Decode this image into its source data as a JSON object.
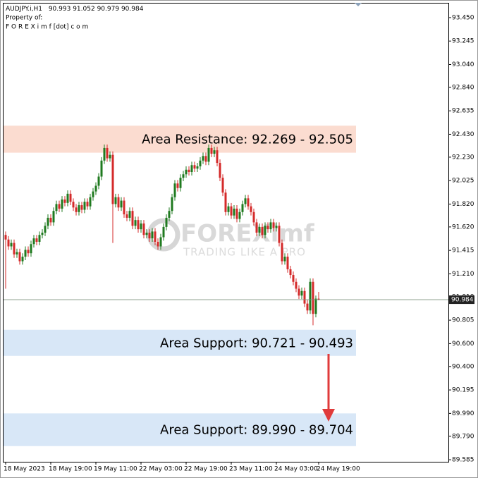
{
  "chart_data": {
    "type": "candlestick",
    "symbol": "AUDJPY.i,H1",
    "subtitle_lines": [
      "Property of:",
      "F O R E X i m f [dot] c o m"
    ],
    "watermark": {
      "brand": "FOREXimf",
      "tagline": "TRADING LIKE A PRO"
    },
    "up_color": "#1f7a1f",
    "down_color": "#d42a2a",
    "categories": [
      "18 May 2023",
      null,
      null,
      null,
      null,
      null,
      null,
      null,
      null,
      null,
      null,
      null,
      null,
      null,
      null,
      null,
      "18 May 19:00",
      null,
      null,
      null,
      null,
      null,
      null,
      null,
      null,
      null,
      null,
      null,
      null,
      null,
      null,
      null,
      "19 May 11:00",
      null,
      null,
      null,
      null,
      null,
      null,
      null,
      null,
      null,
      null,
      null,
      null,
      null,
      null,
      null,
      "22 May 03:00",
      null,
      null,
      null,
      null,
      null,
      null,
      null,
      null,
      null,
      null,
      null,
      null,
      null,
      null,
      null,
      "22 May 19:00",
      null,
      null,
      null,
      null,
      null,
      null,
      null,
      null,
      null,
      null,
      null,
      null,
      null,
      null,
      null,
      "23 May 11:00",
      null,
      null,
      null,
      null,
      null,
      null,
      null,
      null,
      null,
      null,
      null,
      null,
      null,
      null,
      null,
      "24 May 03:00",
      null,
      null,
      null,
      null,
      null,
      null,
      null,
      null,
      null,
      null,
      null,
      null,
      null,
      null,
      "24 May 19:00"
    ],
    "open": [
      91.55,
      91.51,
      91.45,
      91.48,
      91.38,
      91.4,
      91.32,
      91.36,
      91.42,
      91.39,
      91.47,
      91.52,
      91.49,
      91.55,
      91.57,
      91.63,
      91.7,
      91.66,
      91.76,
      91.82,
      91.78,
      91.86,
      91.83,
      91.91,
      91.84,
      91.79,
      91.75,
      91.81,
      91.77,
      91.84,
      91.8,
      91.88,
      91.93,
      91.98,
      92.06,
      92.2,
      92.31,
      92.22,
      92.25,
      91.82,
      91.88,
      91.79,
      91.85,
      91.73,
      91.7,
      91.76,
      91.63,
      91.68,
      91.6,
      91.65,
      91.55,
      91.57,
      91.52,
      91.58,
      91.49,
      91.45,
      91.53,
      91.62,
      91.7,
      91.76,
      91.88,
      92.0,
      91.96,
      92.05,
      92.08,
      92.12,
      92.1,
      92.16,
      92.13,
      92.15,
      92.2,
      92.24,
      92.19,
      92.31,
      92.26,
      92.29,
      92.18,
      92.05,
      91.92,
      91.75,
      91.8,
      91.72,
      91.78,
      91.69,
      91.75,
      91.82,
      91.87,
      91.8,
      91.75,
      91.66,
      91.57,
      91.62,
      91.55,
      91.63,
      91.6,
      91.66,
      91.61,
      91.63,
      91.48,
      91.32,
      91.36,
      91.25,
      91.2,
      91.14,
      91.08,
      91.02,
      91.06,
      90.95,
      90.89,
      91.14,
      90.86,
      90.993
    ],
    "high": [
      91.58,
      91.54,
      91.51,
      91.51,
      91.43,
      91.43,
      91.39,
      91.45,
      91.45,
      91.5,
      91.55,
      91.55,
      91.58,
      91.6,
      91.66,
      91.73,
      91.73,
      91.79,
      91.85,
      91.85,
      91.89,
      91.89,
      91.94,
      91.94,
      91.87,
      91.82,
      91.84,
      91.84,
      91.87,
      91.87,
      91.91,
      91.96,
      92.01,
      92.09,
      92.23,
      92.34,
      92.34,
      92.28,
      92.28,
      91.91,
      91.91,
      91.88,
      91.88,
      91.76,
      91.79,
      91.79,
      91.71,
      91.71,
      91.68,
      91.68,
      91.6,
      91.6,
      91.61,
      91.61,
      91.52,
      91.56,
      91.65,
      91.73,
      91.79,
      91.91,
      92.03,
      92.03,
      92.08,
      92.11,
      92.15,
      92.15,
      92.19,
      92.19,
      92.18,
      92.23,
      92.27,
      92.27,
      92.34,
      92.34,
      92.32,
      92.32,
      92.21,
      92.08,
      91.95,
      91.83,
      91.83,
      91.81,
      91.81,
      91.78,
      91.85,
      91.9,
      91.9,
      91.83,
      91.78,
      91.69,
      91.65,
      91.65,
      91.66,
      91.66,
      91.69,
      91.69,
      91.66,
      91.66,
      91.51,
      91.39,
      91.39,
      91.28,
      91.23,
      91.17,
      91.11,
      91.09,
      91.09,
      90.98,
      91.17,
      91.17,
      91.02,
      91.052
    ],
    "low": [
      91.08,
      91.42,
      91.42,
      91.35,
      91.35,
      91.29,
      91.29,
      91.33,
      91.36,
      91.36,
      91.44,
      91.46,
      91.46,
      91.52,
      91.54,
      91.6,
      91.63,
      91.63,
      91.73,
      91.75,
      91.75,
      91.8,
      91.8,
      91.81,
      91.76,
      91.72,
      91.72,
      91.74,
      91.74,
      91.77,
      91.77,
      91.85,
      91.9,
      91.95,
      92.03,
      92.17,
      92.19,
      92.19,
      91.48,
      91.79,
      91.76,
      91.76,
      91.7,
      91.67,
      91.67,
      91.6,
      91.6,
      91.57,
      91.57,
      91.52,
      91.52,
      91.49,
      91.49,
      91.46,
      91.42,
      91.42,
      91.5,
      91.59,
      91.67,
      91.73,
      91.85,
      91.93,
      91.93,
      92.02,
      92.05,
      92.07,
      92.07,
      92.1,
      92.1,
      92.12,
      92.17,
      92.16,
      92.16,
      92.23,
      92.23,
      92.15,
      92.02,
      91.89,
      91.72,
      91.72,
      91.69,
      91.69,
      91.66,
      91.66,
      91.72,
      91.79,
      91.77,
      91.72,
      91.63,
      91.54,
      91.54,
      91.52,
      91.52,
      91.57,
      91.57,
      91.58,
      91.58,
      91.45,
      91.29,
      91.29,
      91.22,
      91.17,
      91.11,
      91.05,
      90.99,
      90.99,
      90.92,
      90.86,
      90.86,
      90.76,
      90.83,
      90.979
    ],
    "close": [
      91.51,
      91.45,
      91.48,
      91.38,
      91.4,
      91.32,
      91.36,
      91.42,
      91.39,
      91.47,
      91.52,
      91.49,
      91.55,
      91.57,
      91.63,
      91.7,
      91.66,
      91.76,
      91.82,
      91.78,
      91.86,
      91.83,
      91.91,
      91.84,
      91.79,
      91.75,
      91.81,
      91.77,
      91.84,
      91.8,
      91.88,
      91.93,
      91.98,
      92.06,
      92.2,
      92.31,
      92.22,
      92.25,
      91.82,
      91.88,
      91.79,
      91.85,
      91.73,
      91.7,
      91.76,
      91.63,
      91.68,
      91.6,
      91.65,
      91.55,
      91.57,
      91.52,
      91.58,
      91.49,
      91.45,
      91.53,
      91.62,
      91.7,
      91.76,
      91.88,
      92.0,
      91.96,
      92.05,
      92.08,
      92.12,
      92.1,
      92.16,
      92.13,
      92.15,
      92.2,
      92.24,
      92.19,
      92.31,
      92.26,
      92.29,
      92.18,
      92.05,
      91.92,
      91.75,
      91.8,
      91.72,
      91.78,
      91.69,
      91.75,
      91.82,
      91.87,
      91.8,
      91.75,
      91.66,
      91.57,
      91.62,
      91.55,
      91.63,
      91.6,
      91.66,
      91.61,
      91.63,
      91.48,
      91.32,
      91.36,
      91.25,
      91.2,
      91.14,
      91.08,
      91.02,
      91.06,
      90.95,
      90.89,
      91.14,
      90.86,
      90.993,
      90.984
    ],
    "zones": [
      {
        "label": "Area Resistance: 92.269 - 92.505",
        "low": 92.269,
        "high": 92.505,
        "color": "#fbdcd0"
      },
      {
        "label": "Area Support: 90.721 - 90.493",
        "low": 90.493,
        "high": 90.721,
        "color": "#d8e7f7"
      },
      {
        "label": "Area Support: 89.990 - 89.704",
        "low": 89.704,
        "high": 89.99,
        "color": "#d8e7f7"
      }
    ],
    "ylim": [
      89.567,
      93.573
    ],
    "yticks": [
      {
        "value": 93.45,
        "label": "93.450"
      },
      93.245,
      {
        "value": 93.04,
        "label": "93.040"
      },
      {
        "value": 92.84,
        "label": "92.840"
      },
      92.635,
      {
        "value": 92.43,
        "label": "92.430"
      },
      {
        "value": 92.23,
        "label": "92.230"
      },
      92.025,
      {
        "value": 91.82,
        "label": "91.820"
      },
      {
        "value": 91.62,
        "label": "91.620"
      },
      91.415,
      {
        "value": 91.21,
        "label": "91.210"
      },
      {
        "value": 91.01,
        "label": "91.010"
      },
      90.805,
      {
        "value": 90.6,
        "label": "90.600"
      },
      {
        "value": 90.4,
        "label": "90.400"
      },
      90.195,
      {
        "value": 89.99,
        "label": "89.990"
      },
      {
        "value": 89.79,
        "label": "89.790"
      },
      89.585
    ],
    "grid": false
  }
}
